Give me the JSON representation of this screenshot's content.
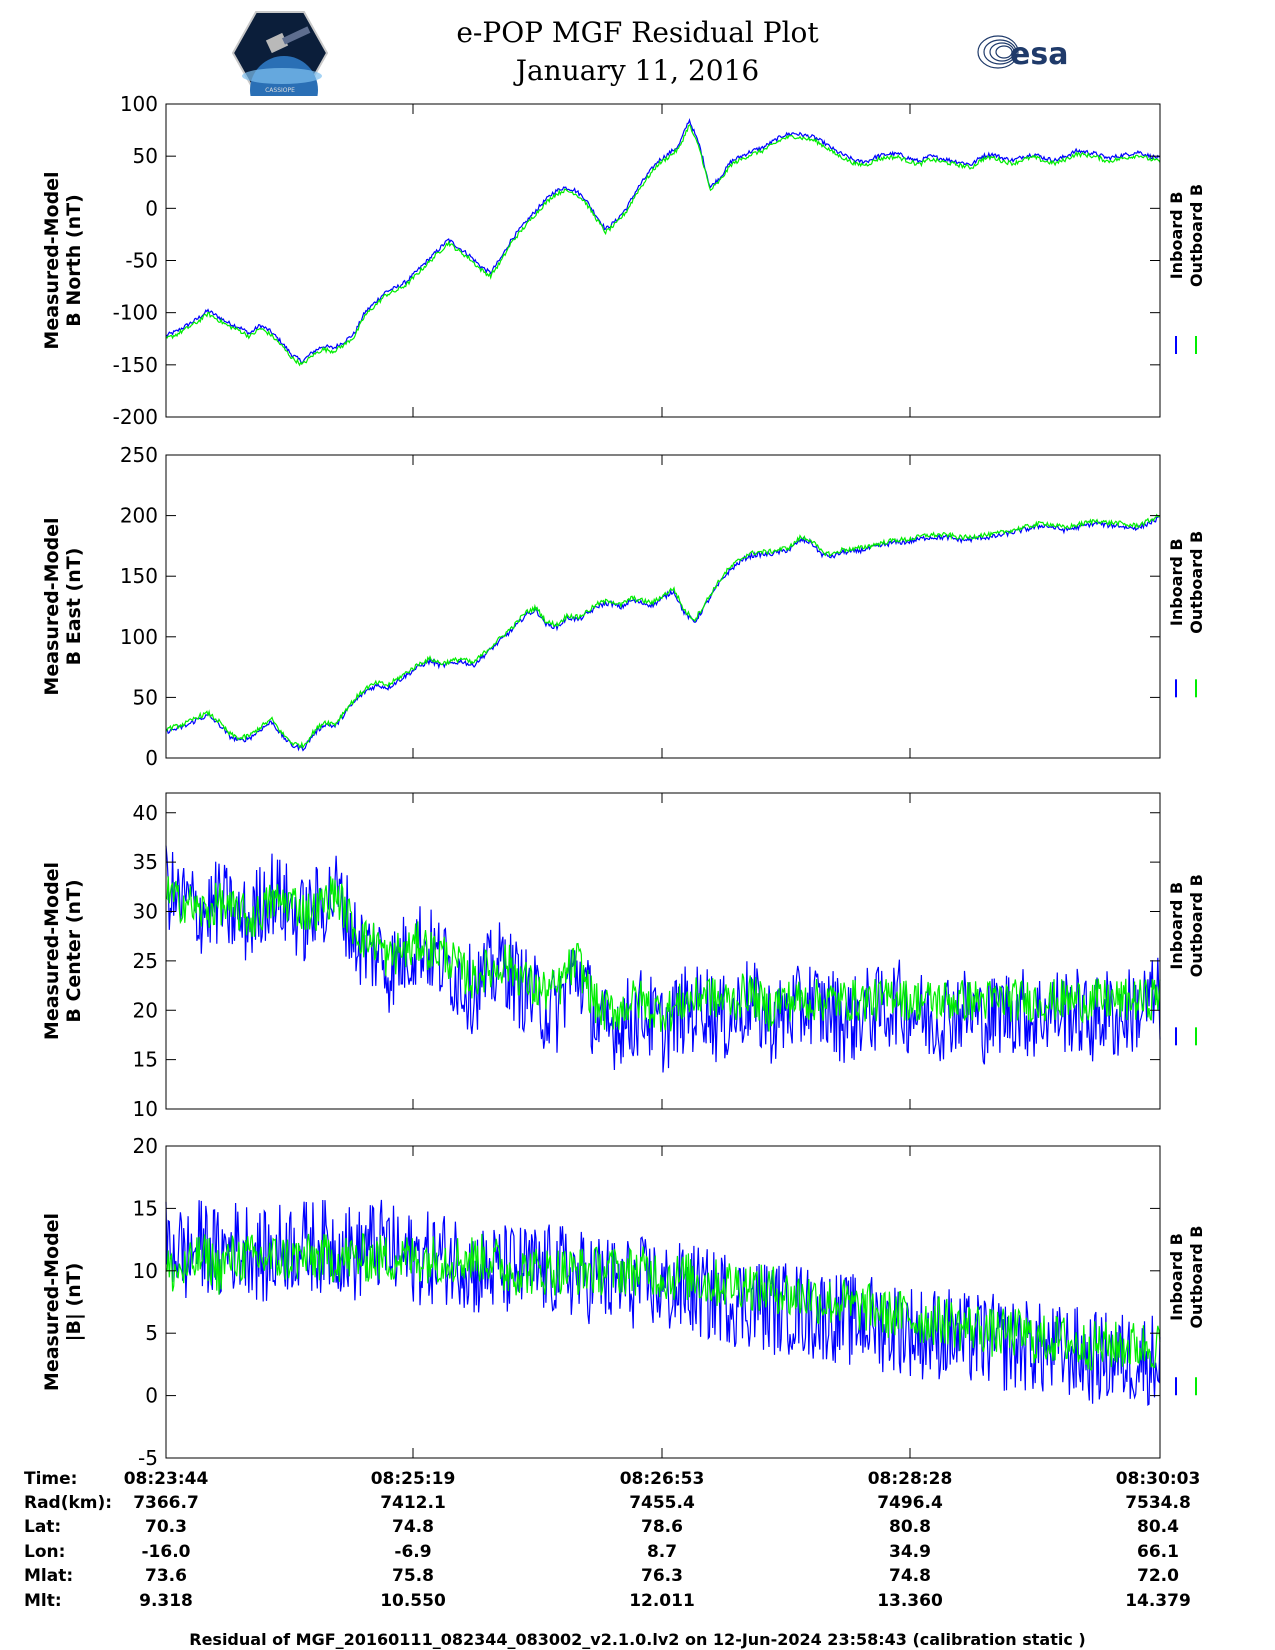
{
  "header": {
    "title_line1": "e-POP MGF Residual Plot",
    "title_line2": "January 11, 2016",
    "esa_logo_text": "esa",
    "cassiope_logo_text": "CASSIOPE"
  },
  "legend": {
    "inboard": "Inboard B",
    "outboard": "Outboard B"
  },
  "colors": {
    "inboard": "#0000ff",
    "outboard": "#00ee00",
    "axis": "#000000",
    "background": "#ffffff"
  },
  "chart_data": [
    {
      "type": "line",
      "ylabel": [
        "Measured-Model",
        "B North (nT)"
      ],
      "ylim": [
        -200,
        100
      ],
      "yticks": [
        100,
        50,
        0,
        -50,
        -100,
        -150,
        -200
      ],
      "series": [
        {
          "name": "Inboard B",
          "noise": 2,
          "values": [
            -122,
            -118,
            -112,
            -106,
            -98,
            -104,
            -110,
            -114,
            -120,
            -112,
            -118,
            -128,
            -140,
            -147,
            -138,
            -132,
            -134,
            -128,
            -120,
            -100,
            -90,
            -80,
            -76,
            -70,
            -60,
            -50,
            -40,
            -30,
            -38,
            -45,
            -55,
            -62,
            -48,
            -30,
            -18,
            -6,
            5,
            15,
            20,
            18,
            10,
            -5,
            -20,
            -12,
            0,
            18,
            32,
            45,
            52,
            60,
            85,
            60,
            20,
            30,
            45,
            50,
            55,
            58,
            64,
            70,
            72,
            70,
            68,
            62,
            55,
            50,
            45,
            45,
            50,
            52,
            52,
            48,
            45,
            50,
            48,
            46,
            44,
            42,
            50,
            52,
            48,
            46,
            50,
            52,
            48,
            46,
            50,
            55,
            54,
            52,
            48,
            50,
            52,
            54,
            50,
            48
          ]
        },
        {
          "name": "Outboard B",
          "noise": 2,
          "values": [
            -125,
            -121,
            -115,
            -109,
            -101,
            -107,
            -113,
            -117,
            -123,
            -115,
            -121,
            -131,
            -143,
            -150,
            -141,
            -135,
            -137,
            -131,
            -123,
            -103,
            -93,
            -83,
            -79,
            -73,
            -63,
            -53,
            -43,
            -33,
            -41,
            -48,
            -58,
            -65,
            -51,
            -33,
            -21,
            -9,
            2,
            12,
            17,
            15,
            7,
            -8,
            -23,
            -15,
            -3,
            15,
            29,
            42,
            49,
            57,
            80,
            57,
            17,
            27,
            42,
            47,
            52,
            55,
            61,
            67,
            69,
            67,
            65,
            59,
            52,
            47,
            42,
            42,
            47,
            49,
            49,
            45,
            42,
            47,
            45,
            43,
            41,
            39,
            47,
            49,
            45,
            43,
            47,
            49,
            45,
            43,
            47,
            52,
            51,
            49,
            45,
            47,
            49,
            51,
            47,
            45
          ]
        }
      ]
    },
    {
      "type": "line",
      "ylabel": [
        "Measured-Model",
        "B East (nT)"
      ],
      "ylim": [
        0,
        250
      ],
      "yticks": [
        250,
        200,
        150,
        100,
        50,
        0
      ],
      "series": [
        {
          "name": "Inboard B",
          "noise": 2,
          "values": [
            22,
            24,
            27,
            32,
            35,
            28,
            18,
            14,
            17,
            24,
            30,
            18,
            10,
            8,
            20,
            28,
            26,
            38,
            48,
            56,
            60,
            58,
            64,
            70,
            76,
            80,
            76,
            78,
            80,
            76,
            84,
            92,
            100,
            108,
            118,
            122,
            110,
            108,
            116,
            114,
            120,
            126,
            128,
            124,
            130,
            128,
            126,
            132,
            138,
            120,
            112,
            126,
            140,
            152,
            160,
            166,
            168,
            168,
            170,
            172,
            180,
            178,
            168,
            166,
            170,
            170,
            172,
            174,
            176,
            178,
            178,
            180,
            182,
            182,
            182,
            180,
            180,
            182,
            182,
            184,
            186,
            188,
            190,
            192,
            190,
            188,
            190,
            192,
            194,
            192,
            192,
            190,
            190,
            194,
            198
          ]
        },
        {
          "name": "Outboard B",
          "noise": 2,
          "values": [
            24,
            26,
            29,
            34,
            37,
            30,
            20,
            16,
            19,
            26,
            32,
            20,
            12,
            10,
            22,
            30,
            28,
            40,
            50,
            58,
            62,
            60,
            66,
            72,
            78,
            82,
            78,
            80,
            82,
            78,
            86,
            94,
            102,
            110,
            120,
            124,
            112,
            110,
            118,
            116,
            122,
            128,
            130,
            126,
            132,
            130,
            128,
            134,
            140,
            122,
            114,
            128,
            142,
            154,
            162,
            168,
            170,
            170,
            172,
            174,
            182,
            180,
            170,
            168,
            172,
            172,
            174,
            176,
            178,
            180,
            180,
            182,
            184,
            184,
            184,
            182,
            182,
            184,
            184,
            186,
            188,
            190,
            192,
            194,
            192,
            190,
            192,
            194,
            196,
            194,
            194,
            192,
            192,
            196,
            200
          ]
        }
      ]
    },
    {
      "type": "line",
      "ylabel": [
        "Measured-Model",
        "B Center (nT)"
      ],
      "ylim": [
        10,
        42
      ],
      "yticks": [
        40,
        35,
        30,
        25,
        20,
        15,
        10
      ],
      "series": [
        {
          "name": "Inboard B",
          "noise": 4.5,
          "values": [
            33,
            31,
            31,
            30,
            30,
            31,
            30,
            29,
            29,
            31,
            32,
            31,
            30,
            29,
            30,
            31,
            32,
            30,
            27,
            26,
            26,
            24,
            25,
            26,
            27,
            26,
            25,
            24,
            23,
            22,
            23,
            24,
            25,
            23,
            22,
            21,
            20,
            20,
            23,
            24,
            21,
            18,
            18,
            19,
            19,
            20,
            19,
            18,
            19,
            20,
            20,
            21,
            19,
            19,
            20,
            21,
            20,
            19,
            19,
            20,
            20,
            21,
            20,
            20,
            19,
            19,
            20,
            20,
            20,
            21,
            20,
            20,
            19,
            19,
            20,
            20,
            20,
            19,
            19,
            20,
            20,
            20,
            19,
            20,
            20,
            20,
            20,
            19,
            19,
            20,
            19,
            20,
            20,
            21,
            21
          ]
        },
        {
          "name": "Outboard B",
          "noise": 2.2,
          "values": [
            32,
            31,
            31,
            30,
            30,
            31,
            30,
            30,
            29,
            30,
            31,
            31,
            31,
            30,
            30,
            31,
            32,
            30,
            28,
            27,
            27,
            25,
            26,
            26,
            27,
            26,
            26,
            25,
            24,
            23,
            24,
            24,
            25,
            24,
            23,
            22,
            22,
            22,
            24,
            25,
            22,
            20,
            20,
            20,
            21,
            21,
            20,
            20,
            20,
            21,
            21,
            22,
            21,
            21,
            21,
            22,
            21,
            20,
            21,
            21,
            21,
            21,
            21,
            21,
            21,
            21,
            21,
            21,
            21,
            22,
            21,
            21,
            21,
            21,
            21,
            21,
            21,
            21,
            21,
            21,
            21,
            21,
            21,
            21,
            21,
            21,
            21,
            21,
            21,
            21,
            21,
            21,
            21,
            21,
            22
          ]
        }
      ]
    },
    {
      "type": "line",
      "ylabel": [
        "Measured-Model",
        "|B| (nT)"
      ],
      "ylim": [
        -5,
        20
      ],
      "yticks": [
        20,
        15,
        10,
        5,
        0,
        -5
      ],
      "series": [
        {
          "name": "Inboard B",
          "noise": 3.8,
          "values": [
            12,
            12,
            11,
            12,
            12,
            11,
            12,
            12,
            12,
            11,
            11,
            12,
            12,
            12,
            12,
            12,
            12,
            12,
            11,
            12,
            12,
            12,
            11,
            11,
            11,
            11,
            11,
            11,
            11,
            10,
            10,
            10,
            10,
            10,
            10,
            10,
            10,
            10,
            10,
            9.5,
            9.5,
            9.5,
            9,
            9,
            9,
            9,
            9,
            8.5,
            8.5,
            8.5,
            8.5,
            8,
            8,
            8,
            7.5,
            7.5,
            7.5,
            7,
            7,
            7,
            7,
            6.5,
            6.5,
            6.5,
            6,
            6,
            6,
            6,
            5.5,
            5.5,
            5.5,
            5,
            5,
            5,
            5,
            4.5,
            4.5,
            4.5,
            4.5,
            4,
            4,
            4,
            4,
            3.5,
            3.5,
            3.5,
            3.5,
            3,
            3,
            3,
            3,
            3,
            3,
            3,
            3
          ]
        },
        {
          "name": "Outboard B",
          "noise": 2,
          "values": [
            10,
            10,
            10,
            11,
            11,
            10,
            11,
            11,
            11,
            11,
            11,
            11,
            11,
            11,
            11,
            11,
            11,
            11,
            11,
            11,
            11,
            11,
            11,
            11,
            11,
            11,
            11,
            11,
            11,
            11,
            11,
            11,
            10,
            10,
            10,
            10,
            10,
            10,
            10,
            10,
            10,
            10,
            10,
            10,
            10,
            10,
            10,
            9.5,
            9.5,
            9.5,
            9.5,
            9,
            9,
            9,
            9,
            9,
            8.5,
            8.5,
            8.5,
            8,
            8,
            8,
            7.5,
            7.5,
            7.5,
            7,
            7,
            7,
            6.5,
            6.5,
            6.5,
            6,
            6,
            6,
            6,
            5.5,
            5.5,
            5.5,
            5,
            5,
            5,
            5,
            4.5,
            4.5,
            4.5,
            4.5,
            4,
            4,
            4,
            4,
            4,
            4,
            4,
            4,
            4
          ]
        }
      ]
    }
  ],
  "orbit_table": {
    "row_labels": [
      "Time:",
      "Rad(km):",
      "Lat:",
      "Lon:",
      "Mlat:",
      "Mlt:"
    ],
    "columns": [
      [
        "08:23:44",
        "7366.7",
        "70.3",
        "-16.0",
        "73.6",
        "9.318"
      ],
      [
        "08:25:19",
        "7412.1",
        "74.8",
        "-6.9",
        "75.8",
        "10.550"
      ],
      [
        "08:26:53",
        "7455.4",
        "78.6",
        "8.7",
        "76.3",
        "12.011"
      ],
      [
        "08:28:28",
        "7496.4",
        "80.8",
        "34.9",
        "74.8",
        "13.360"
      ],
      [
        "08:30:03",
        "7534.8",
        "80.4",
        "66.1",
        "72.0",
        "14.379"
      ]
    ]
  },
  "footer": "Residual of MGF_20160111_082344_083002_v2.1.0.lv2 on 12-Jun-2024 23:58:43 (calibration static )"
}
